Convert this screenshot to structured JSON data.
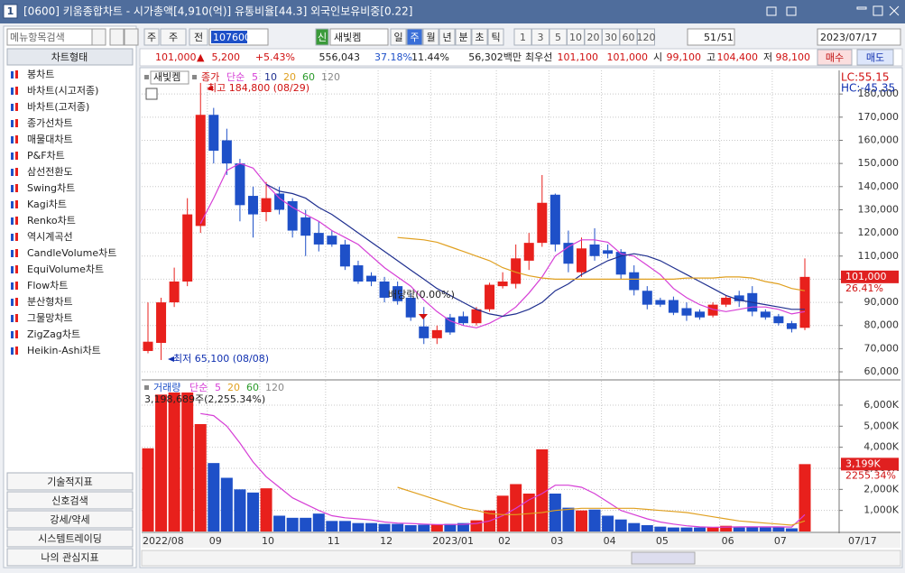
{
  "window": {
    "icon": "1",
    "title": "[0600] 키움종합차트 - 시가총액[4,910(억)] 유통비율[44.3] 외국인보유비중[0.22]"
  },
  "menu": {
    "search": "메뉴항목검색",
    "header": "차트형태",
    "items": [
      "봉차트",
      "바차트(시고저종)",
      "바차트(고저종)",
      "종가선차트",
      "매물대차트",
      "P&F차트",
      "삼선전환도",
      "Swing차트",
      "Kagi차트",
      "Renko차트",
      "역시계곡선",
      "CandleVolume차트",
      "EquiVolume차트",
      "Flow차트",
      "분산형차트",
      "그물망차트",
      "ZigZag차트",
      "Heikin-Ashi차트"
    ],
    "bottom": [
      "기술적지표",
      "신호검색",
      "강세/약세",
      "시스템트레이딩",
      "나의 관심지표"
    ]
  },
  "toolbar": {
    "period_sel": "주",
    "all": "전",
    "code": "107600",
    "tag": "신",
    "name": "새빛켐",
    "periods": [
      "일",
      "주",
      "월",
      "년",
      "분",
      "초",
      "틱"
    ],
    "active_period": 1,
    "intervals": [
      "1",
      "3",
      "5",
      "10",
      "20",
      "30",
      "60",
      "120"
    ],
    "count": "51",
    "total": "/51",
    "date": "2023/07/17"
  },
  "quote": {
    "price": "101,000",
    "arrow": "▲",
    "change": "5,200",
    "change_pct": "+5.43%",
    "volume": "556,043",
    "ratio1": "37.18%",
    "ratio2": "11.44%",
    "amount": "56,302백만",
    "best_label": "최우선",
    "ask": "101,100",
    "bid": "101,000",
    "open_label": "시",
    "open": "99,100",
    "high_label": "고",
    "high": "104,400",
    "low_label": "저",
    "low": "98,100",
    "buy": "매수",
    "sell": "매도"
  },
  "chart_data": [
    {
      "type": "candlestick",
      "name": "새빛켐",
      "price_label": "종가",
      "method": "단순",
      "categories": [
        "2022/08",
        null,
        null,
        null,
        null,
        "09",
        null,
        null,
        null,
        "10",
        null,
        null,
        null,
        null,
        "11",
        null,
        null,
        null,
        "12",
        null,
        null,
        null,
        "2023/01",
        null,
        null,
        null,
        null,
        "02",
        null,
        null,
        null,
        "03",
        null,
        null,
        null,
        "04",
        null,
        null,
        null,
        "05",
        null,
        null,
        null,
        null,
        "06",
        null,
        null,
        null,
        "07",
        null,
        null
      ],
      "open": [
        69000,
        72500,
        90000,
        99000,
        123000,
        171000,
        160000,
        150000,
        136000,
        129000,
        137000,
        133700,
        126700,
        120000,
        118800,
        115000,
        106000,
        101500,
        99000,
        97000,
        92000,
        79600,
        74500,
        83500,
        84000,
        81000,
        87000,
        97000,
        98000,
        108000,
        115700,
        136500,
        115700,
        103000,
        115000,
        112500,
        111800,
        103000,
        95000,
        91000,
        91000,
        87500,
        86000,
        84300,
        89000,
        93000,
        94000,
        86000,
        84000,
        81000,
        79000
      ],
      "high": [
        90000,
        92000,
        105000,
        135000,
        184800,
        174000,
        165000,
        152000,
        140000,
        142000,
        140000,
        135000,
        130000,
        125000,
        121000,
        117000,
        108000,
        103000,
        101000,
        99000,
        94000,
        88000,
        80000,
        85000,
        86000,
        88000,
        98500,
        103000,
        115000,
        120000,
        145000,
        137000,
        121000,
        118000,
        122000,
        115000,
        113000,
        106000,
        97000,
        92000,
        92500,
        90000,
        87000,
        90000,
        93000,
        95000,
        97000,
        87000,
        85000,
        82000,
        109000
      ],
      "low": [
        68000,
        65100,
        88000,
        97000,
        120000,
        150000,
        145000,
        125000,
        118000,
        125000,
        128000,
        118000,
        110000,
        112000,
        114000,
        104000,
        98000,
        97000,
        90000,
        89000,
        82000,
        72000,
        72000,
        76000,
        80000,
        80000,
        86000,
        96000,
        96000,
        104000,
        114000,
        112000,
        103000,
        101000,
        108000,
        109000,
        100000,
        93000,
        87000,
        88000,
        84500,
        82000,
        82500,
        83500,
        88000,
        88000,
        84000,
        82500,
        80000,
        77000,
        78000
      ],
      "close": [
        73000,
        90000,
        99000,
        128000,
        171000,
        155500,
        150000,
        132000,
        128000,
        135000,
        130000,
        121000,
        118800,
        115000,
        115000,
        105500,
        99000,
        99000,
        92000,
        90500,
        83500,
        74500,
        78000,
        77000,
        81000,
        87000,
        97600,
        99000,
        109000,
        115700,
        133000,
        115000,
        106700,
        113300,
        110000,
        111000,
        102000,
        95300,
        89000,
        89000,
        85500,
        84300,
        83500,
        89000,
        92000,
        90500,
        86000,
        83500,
        81000,
        78500,
        101000
      ],
      "up_color": "#e8201c",
      "down_color": "#1e50c8",
      "ma": [
        {
          "name": "5",
          "color": "#d63fd6",
          "values": [
            null,
            null,
            null,
            null,
            124000,
            135000,
            147000,
            150000,
            148000,
            141000,
            135000,
            131000,
            128000,
            125000,
            121000,
            118000,
            115000,
            110000,
            105000,
            101000,
            97000,
            91000,
            86000,
            82000,
            80000,
            79000,
            81000,
            84000,
            88000,
            94000,
            101000,
            110000,
            114000,
            117000,
            117000,
            116000,
            111000,
            110000,
            106000,
            102000,
            96000,
            92000,
            89000,
            87000,
            86000,
            87000,
            88000,
            88000,
            87000,
            85000,
            86000
          ]
        },
        {
          "name": "10",
          "color": "#1f2f8f",
          "values": [
            null,
            null,
            null,
            null,
            null,
            null,
            null,
            null,
            null,
            141000,
            138000,
            137000,
            135000,
            131000,
            128000,
            124000,
            120000,
            116000,
            112000,
            108000,
            104000,
            100000,
            96000,
            93000,
            90000,
            87000,
            85000,
            84000,
            85000,
            87000,
            90000,
            95000,
            98000,
            102000,
            105000,
            108000,
            110000,
            111000,
            110000,
            108000,
            105000,
            102000,
            99000,
            96000,
            93000,
            91000,
            90000,
            89000,
            88000,
            87000,
            87000
          ]
        },
        {
          "name": "20",
          "color": "#e0a020",
          "values": [
            null,
            null,
            null,
            null,
            null,
            null,
            null,
            null,
            null,
            null,
            null,
            null,
            null,
            null,
            null,
            null,
            null,
            null,
            null,
            118000,
            117500,
            117000,
            116000,
            114000,
            112000,
            110000,
            108000,
            105000,
            103000,
            101500,
            100500,
            100000,
            100000,
            100000,
            100000,
            100000,
            100000,
            100000,
            100000,
            100000,
            100000,
            100500,
            100500,
            100500,
            101000,
            101000,
            100500,
            99000,
            98000,
            96000,
            95000
          ]
        },
        {
          "name": "60",
          "color": "#2a9a2a",
          "values": [
            null,
            null,
            null,
            null,
            null,
            null,
            null,
            null,
            null,
            null,
            null,
            null,
            null,
            null,
            null,
            null,
            null,
            null,
            null,
            null,
            null,
            null,
            null,
            null,
            null,
            null,
            null,
            null,
            null,
            null,
            null,
            null,
            null,
            null,
            null,
            null,
            null,
            null,
            null,
            null,
            null,
            null,
            null,
            null,
            null,
            null,
            null,
            null,
            null,
            null,
            null
          ]
        },
        {
          "name": "120",
          "color": "#888888",
          "values": [
            null,
            null,
            null,
            null,
            null,
            null,
            null,
            null,
            null,
            null,
            null,
            null,
            null,
            null,
            null,
            null,
            null,
            null,
            null,
            null,
            null,
            null,
            null,
            null,
            null,
            null,
            null,
            null,
            null,
            null,
            null,
            null,
            null,
            null,
            null,
            null,
            null,
            null,
            null,
            null,
            null,
            null,
            null,
            null,
            null,
            null,
            null,
            null,
            null,
            null,
            null
          ]
        }
      ],
      "ylim": [
        56900,
        190200
      ],
      "yticks": [
        {
          "value": 60000,
          "label": "60,000"
        },
        {
          "value": 70000,
          "label": "70,000"
        },
        {
          "value": 80000,
          "label": "80,000"
        },
        {
          "value": 90000,
          "label": "90,000"
        },
        {
          "value": 100000,
          "label": "100,000"
        },
        {
          "value": 110000,
          "label": "110,000"
        },
        {
          "value": 120000,
          "label": "120,000"
        },
        {
          "value": 130000,
          "label": "130,000"
        },
        {
          "value": 140000,
          "label": "140,000"
        },
        {
          "value": 150000,
          "label": "150,000"
        },
        {
          "value": 160000,
          "label": "160,000"
        },
        {
          "value": 170000,
          "label": "170,000"
        },
        {
          "value": 180000,
          "label": "180,000"
        }
      ],
      "grid": true,
      "annotations": {
        "high": "최고 184,800 (08/29)",
        "low": "최저 65,100 (08/08)",
        "dividend": "배당락(0.00%)",
        "lc": "LC:55.15",
        "hc": "HC:-45.35",
        "last_price": "101,000",
        "last_pct": "26.41%"
      }
    },
    {
      "type": "bar",
      "name": "거래량",
      "method": "단순",
      "values": [
        3950000,
        6500000,
        6600000,
        6600000,
        5100000,
        3250000,
        2550000,
        2000000,
        1850000,
        2050000,
        750000,
        650000,
        650000,
        850000,
        500000,
        500000,
        400000,
        400000,
        360000,
        360000,
        300000,
        320000,
        320000,
        360000,
        400000,
        530000,
        1000000,
        1700000,
        2250000,
        1800000,
        3900000,
        1800000,
        1130000,
        1000000,
        1040000,
        750000,
        570000,
        400000,
        300000,
        230000,
        190000,
        190000,
        190000,
        190000,
        270000,
        190000,
        230000,
        190000,
        190000,
        150000,
        3198689
      ],
      "ma": [
        {
          "name": "5",
          "color": "#d63fd6",
          "values": [
            null,
            null,
            null,
            null,
            5600000,
            5500000,
            5000000,
            4200000,
            3300000,
            2600000,
            2100000,
            1600000,
            1300000,
            1000000,
            750000,
            650000,
            600000,
            550000,
            450000,
            400000,
            380000,
            350000,
            330000,
            330000,
            340000,
            380000,
            500000,
            750000,
            1100000,
            1500000,
            1800000,
            2200000,
            2200000,
            2100000,
            1800000,
            1400000,
            1000000,
            800000,
            600000,
            450000,
            350000,
            270000,
            220000,
            200000,
            210000,
            220000,
            220000,
            220000,
            220000,
            210000,
            800000
          ]
        },
        {
          "name": "20",
          "color": "#e0a020",
          "values": [
            null,
            null,
            null,
            null,
            null,
            null,
            null,
            null,
            null,
            null,
            null,
            null,
            null,
            null,
            null,
            null,
            null,
            null,
            null,
            2100000,
            1900000,
            1700000,
            1500000,
            1300000,
            1100000,
            1000000,
            850000,
            800000,
            800000,
            850000,
            900000,
            1000000,
            1050000,
            1100000,
            1100000,
            1100000,
            1100000,
            1100000,
            1050000,
            1000000,
            950000,
            900000,
            800000,
            700000,
            600000,
            500000,
            450000,
            400000,
            350000,
            300000,
            500000
          ]
        },
        {
          "name": "60",
          "color": "#2a9a2a",
          "values": [
            null,
            null,
            null,
            null,
            null,
            null,
            null,
            null,
            null,
            null,
            null,
            null,
            null,
            null,
            null,
            null,
            null,
            null,
            null,
            null,
            null,
            null,
            null,
            null,
            null,
            null,
            null,
            null,
            null,
            null,
            null,
            null,
            null,
            null,
            null,
            null,
            null,
            null,
            null,
            null,
            null,
            null,
            null,
            null,
            null,
            null,
            null,
            null,
            null,
            null,
            null
          ]
        },
        {
          "name": "120",
          "color": "#888888",
          "values": [
            null,
            null,
            null,
            null,
            null,
            null,
            null,
            null,
            null,
            null,
            null,
            null,
            null,
            null,
            null,
            null,
            null,
            null,
            null,
            null,
            null,
            null,
            null,
            null,
            null,
            null,
            null,
            null,
            null,
            null,
            null,
            null,
            null,
            null,
            null,
            null,
            null,
            null,
            null,
            null,
            null,
            null,
            null,
            null,
            null,
            null,
            null,
            null,
            null,
            null,
            null
          ]
        }
      ],
      "ylim": [
        0,
        7070000
      ],
      "yticks": [
        {
          "value": 1000000,
          "label": "1,000K"
        },
        {
          "value": 2000000,
          "label": "2,000K"
        },
        {
          "value": 3000000,
          "label": "3,000K"
        },
        {
          "value": 4000000,
          "label": "4,000K"
        },
        {
          "value": 5000000,
          "label": "5,000K"
        },
        {
          "value": 6000000,
          "label": "6,000K"
        }
      ],
      "grid": true,
      "annotations": {
        "last": "3,198,689주(2,255.34%)",
        "last_value": "3,199K",
        "last_pct": "2255.34%",
        "last_date": "07/17"
      }
    }
  ]
}
